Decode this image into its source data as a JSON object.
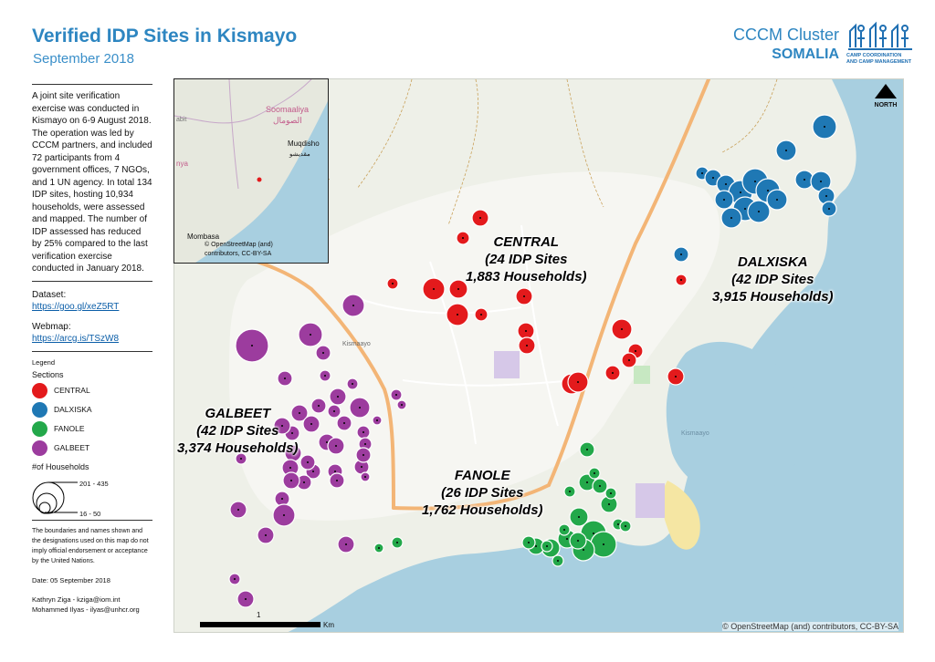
{
  "header": {
    "title": "Verified IDP Sites in Kismayo",
    "subtitle": "September 2018",
    "brand_cluster": "CCCM Cluster",
    "brand_country": "SOMALIA",
    "logo_caption_1": "CAMP COORDINATION",
    "logo_caption_2": "AND CAMP MANAGEMENT"
  },
  "sidebar": {
    "description": "A joint site verification exercise was conducted in Kismayo on 6-9 August 2018. The operation was led by CCCM partners, and included 72 participants from 4 government offices, 7 NGOs, and 1 UN agency. In total 134 IDP sites, hosting 10,934 households, were assessed and mapped. The number of IDP assessed has reduced by 25% compared to the last verification exercise conducted in January 2018.",
    "dataset_label": "Dataset:",
    "dataset_link": "https://goo.gl/xeZ5RT",
    "webmap_label": "Webmap:",
    "webmap_link": "https://arcg.is/TSzW8",
    "legend_title": "Legend",
    "legend_sections_title": "Sections",
    "legend_households_title": "#of Households",
    "legend_size_max": "201 - 435",
    "legend_size_min": "16 - 50",
    "disclaimer": "The boundaries and names shown and the designations used on this map do not imply official endorsement or acceptance by the United Nations.",
    "date": "Date: 05 September 2018",
    "credit_1": "Kathryn Ziga - kziga@iom.int",
    "credit_2": "Mohammed Ilyas - ilyas@unhcr.org"
  },
  "legend": [
    {
      "label": "CENTRAL",
      "color": "#e31a1c"
    },
    {
      "label": "DALXISKA",
      "color": "#1f78b4"
    },
    {
      "label": "FANOLE",
      "color": "#23a84a"
    },
    {
      "label": "GALBEET",
      "color": "#9c3c9e"
    }
  ],
  "sections": {
    "central": {
      "name": "CENTRAL",
      "sites": "(24 IDP Sites",
      "households": "1,883 Households)",
      "color": "#e31a1c"
    },
    "dalxiska": {
      "name": "DALXISKA",
      "sites": "(42 IDP Sites",
      "households": "3,915 Households)",
      "color": "#1f78b4"
    },
    "galbeet": {
      "name": "GALBEET",
      "sites": "(42 IDP Sites",
      "households": "3,374 Households)",
      "color": "#9c3c9e"
    },
    "fanole": {
      "name": "FANOLE",
      "sites": "(26 IDP Sites",
      "households": "1,762 Households)",
      "color": "#23a84a"
    }
  },
  "inset": {
    "label_country_1": "Soomaaliya",
    "label_country_2": "الصومال",
    "label_city": "Muqdisho",
    "label_city_ar": "مقديشو",
    "label_mombasa": "Mombasa",
    "label_left_1": "abit",
    "label_left_2": "nya",
    "attribution_1": "© OpenStreetMap (and)",
    "attribution_2": "contributors, CC-BY-SA"
  },
  "map": {
    "north_label": "NORTH",
    "scale_label_one": "1",
    "scale_unit": "Km",
    "attribution": "© OpenStreetMap (and) contributors, CC-BY-SA",
    "place_label_1": "Kismaayo",
    "place_label_2": "Kismaayo"
  }
}
